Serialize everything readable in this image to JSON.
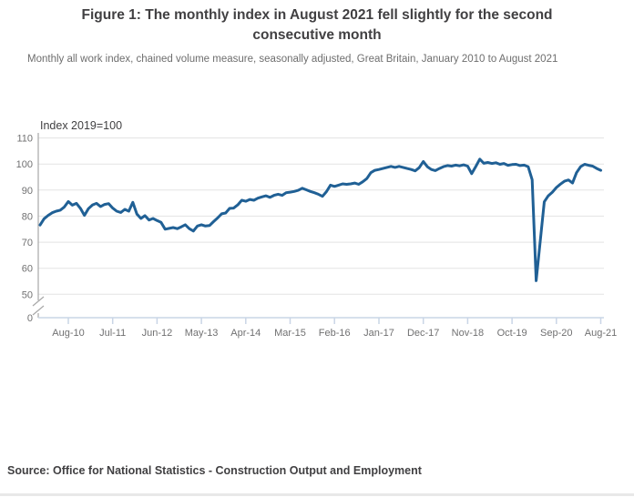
{
  "header": {
    "title": "Figure 1: The monthly index in August 2021 fell slightly for the second consecutive month",
    "subtitle": "Monthly all work index, chained volume measure, seasonally adjusted, Great Britain, January 2010 to August 2021"
  },
  "footer": {
    "source": "Source: Office for National Statistics - Construction Output and Employment"
  },
  "colors": {
    "line": "#206095",
    "grid": "#e3e3e3",
    "axis_y": "#a8a8a8",
    "axis_x": "#c9d5e6",
    "tick_label": "#707071",
    "index_label": "#414042"
  },
  "chart_data": {
    "type": "line",
    "title": "Figure 1: The monthly index in August 2021 fell slightly for the second consecutive month",
    "subtitle": "Monthly all work index, chained volume measure, seasonally adjusted, Great Britain, January 2010 to August 2021",
    "index_label": "Index 2019=100",
    "frequency": "monthly",
    "x_range": [
      "Jan 2010",
      "Aug 2021"
    ],
    "ylim": [
      50,
      110
    ],
    "axis_break_below": 50,
    "grid": "horizontal",
    "legend": "none",
    "y_gridlines": [
      50,
      60,
      70,
      80,
      90,
      100,
      110
    ],
    "y_ticks": [
      0,
      50,
      60,
      70,
      80,
      90,
      100,
      110
    ],
    "x_ticks": [
      {
        "label": "Aug-10",
        "month": 7
      },
      {
        "label": "Jul-11",
        "month": 18
      },
      {
        "label": "Jun-12",
        "month": 29
      },
      {
        "label": "May-13",
        "month": 40
      },
      {
        "label": "Apr-14",
        "month": 51
      },
      {
        "label": "Mar-15",
        "month": 62
      },
      {
        "label": "Feb-16",
        "month": 73
      },
      {
        "label": "Jan-17",
        "month": 84
      },
      {
        "label": "Dec-17",
        "month": 95
      },
      {
        "label": "Nov-18",
        "month": 106
      },
      {
        "label": "Oct-19",
        "month": 117
      },
      {
        "label": "Sep-20",
        "month": 128
      },
      {
        "label": "Aug-21",
        "month": 139
      }
    ],
    "series": [
      {
        "name": "Monthly all work index",
        "color": "#206095",
        "start_month": "2010-01",
        "end_month": "2021-08",
        "values": [
          76.6,
          79.0,
          80.3,
          81.3,
          81.9,
          82.3,
          83.5,
          85.6,
          84.2,
          84.9,
          83.0,
          80.3,
          82.9,
          84.3,
          84.9,
          83.7,
          84.5,
          84.8,
          83.1,
          81.9,
          81.4,
          82.6,
          81.9,
          85.3,
          80.8,
          79.1,
          80.2,
          78.5,
          79.1,
          78.3,
          77.6,
          75.0,
          75.3,
          75.6,
          75.2,
          75.9,
          76.7,
          75.2,
          74.3,
          76.2,
          76.7,
          76.2,
          76.4,
          77.9,
          79.3,
          80.9,
          81.2,
          83.0,
          83.1,
          84.3,
          86.1,
          85.7,
          86.4,
          86.1,
          86.9,
          87.4,
          87.8,
          87.2,
          88.0,
          88.4,
          88.0,
          89.0,
          89.2,
          89.5,
          89.9,
          90.7,
          90.1,
          89.5,
          89.0,
          88.4,
          87.6,
          89.4,
          91.9,
          91.4,
          91.9,
          92.4,
          92.2,
          92.4,
          92.7,
          92.2,
          93.2,
          94.4,
          96.7,
          97.6,
          97.9,
          98.3,
          98.7,
          99.1,
          98.7,
          99.1,
          98.7,
          98.3,
          97.9,
          97.4,
          98.6,
          101.0,
          99.0,
          97.9,
          97.5,
          98.3,
          99.0,
          99.4,
          99.2,
          99.6,
          99.3,
          99.7,
          99.2,
          96.3,
          99.0,
          101.9,
          100.3,
          100.6,
          100.2,
          100.5,
          99.9,
          100.2,
          99.5,
          99.8,
          99.9,
          99.4,
          99.6,
          99.0,
          94.0,
          55.2,
          70.5,
          85.5,
          87.8,
          89.2,
          91.0,
          92.3,
          93.4,
          93.9,
          92.7,
          96.7,
          99.0,
          99.9,
          99.5,
          99.2,
          98.3,
          97.6
        ]
      }
    ]
  }
}
